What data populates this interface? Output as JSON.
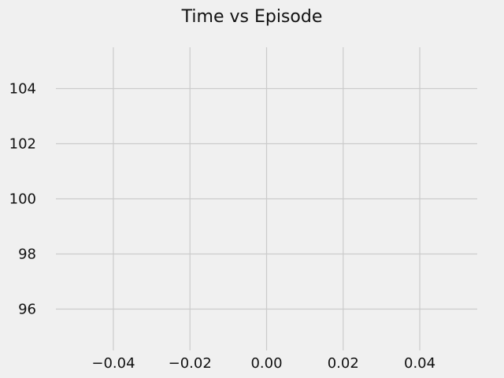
{
  "chart_data": {
    "type": "line",
    "title": "Time vs Episode",
    "xlabel": "",
    "ylabel": "",
    "xlim": [
      -0.055,
      0.055
    ],
    "ylim": [
      94.5,
      105.5
    ],
    "x_ticks": [
      -0.04,
      -0.02,
      0.0,
      0.02,
      0.04
    ],
    "x_tick_labels": [
      "−0.04",
      "−0.02",
      "0.00",
      "0.02",
      "0.04"
    ],
    "y_ticks": [
      96,
      98,
      100,
      102,
      104
    ],
    "y_tick_labels": [
      "96",
      "98",
      "100",
      "102",
      "104"
    ],
    "grid": true,
    "series": [
      {
        "x": [],
        "y": []
      }
    ],
    "colors": {
      "background": "#f0f0f0",
      "grid": "#cbcbcb",
      "text": "#111111"
    }
  }
}
